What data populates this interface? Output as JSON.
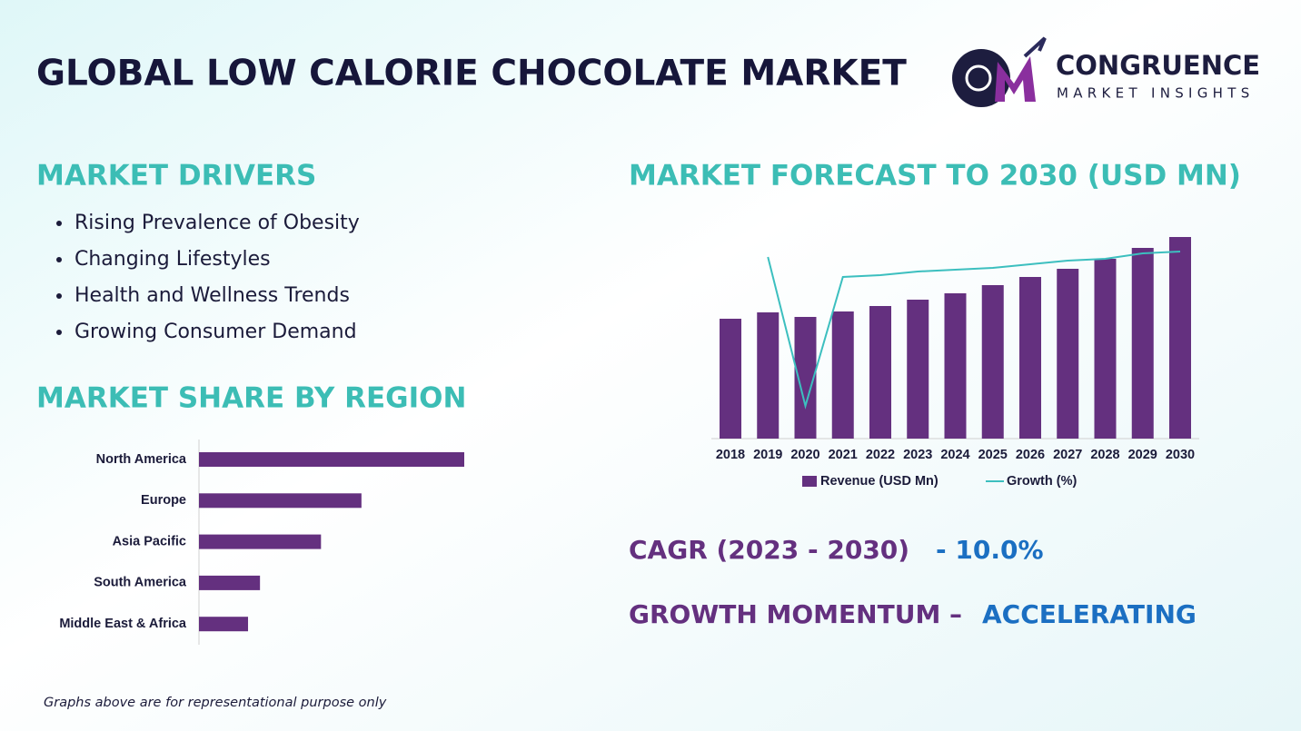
{
  "header": {
    "title": "GLOBAL LOW CALORIE CHOCOLATE MARKET",
    "logo_name": "CONGRUENCE",
    "logo_tagline": "MARKET INSIGHTS"
  },
  "drivers": {
    "heading": "MARKET DRIVERS",
    "items": [
      "Rising Prevalence of Obesity",
      "Changing Lifestyles",
      "Health and Wellness Trends",
      "Growing Consumer Demand"
    ]
  },
  "region_heading": "MARKET SHARE BY REGION",
  "forecast_heading": "MARKET FORECAST TO 2030 (USD MN)",
  "chart_data": [
    {
      "type": "bar",
      "orientation": "horizontal",
      "categories": [
        "North America",
        "Europe",
        "Asia Pacific",
        "South America",
        "Middle East & Africa"
      ],
      "values": [
        40,
        24.5,
        18.4,
        9.2,
        7.4
      ],
      "color": "#64307f"
    },
    {
      "type": "combo",
      "categories": [
        "2018",
        "2019",
        "2020",
        "2021",
        "2022",
        "2023",
        "2024",
        "2025",
        "2026",
        "2027",
        "2028",
        "2029",
        "2030"
      ],
      "series": [
        {
          "name": "Revenue (USD Mn)",
          "type": "bar",
          "color": "#64307f",
          "values": [
            132,
            139,
            134,
            140,
            146,
            153,
            160,
            169,
            178,
            187,
            198,
            210,
            222
          ]
        },
        {
          "name": "Growth (%)",
          "type": "line",
          "axis": "y2",
          "color": "#3cbfbf",
          "values": [
            null,
            10.0,
            1.8,
            8.9,
            9.0,
            9.2,
            9.3,
            9.4,
            9.6,
            9.8,
            9.9,
            10.2,
            10.3
          ]
        }
      ]
    }
  ],
  "cagr": {
    "label": "CAGR (2023 - 2030)",
    "value": "- 10.0%"
  },
  "momentum": {
    "label": "GROWTH MOMENTUM –",
    "value": "ACCELERATING"
  },
  "footnote": "Graphs above are for representational purpose only"
}
